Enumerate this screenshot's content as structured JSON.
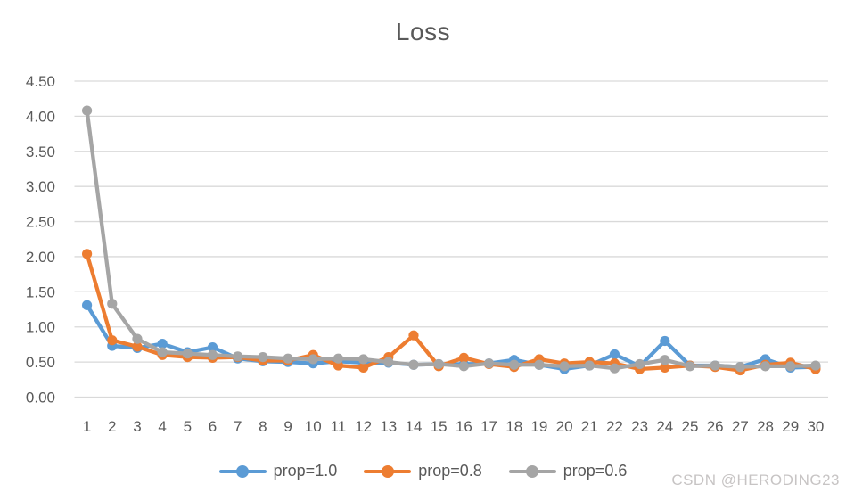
{
  "watermark": "CSDN @HERODING23",
  "colors": {
    "grid": "#D9D9D9",
    "axis_text": "#595959",
    "title_text": "#595959",
    "series_blue": "#5B9BD5",
    "series_orange": "#ED7D31",
    "series_gray": "#A5A5A5"
  },
  "chart_data": {
    "type": "line",
    "title": "Loss",
    "xlabel": "",
    "ylabel": "",
    "x": [
      "1",
      "2",
      "3",
      "4",
      "5",
      "6",
      "7",
      "8",
      "9",
      "10",
      "11",
      "12",
      "13",
      "14",
      "15",
      "16",
      "17",
      "18",
      "19",
      "20",
      "21",
      "22",
      "23",
      "24",
      "25",
      "26",
      "27",
      "28",
      "29",
      "30"
    ],
    "ylim": [
      0,
      4.5
    ],
    "ytick_step": 0.5,
    "ytick_labels": [
      "0.00",
      "0.50",
      "1.00",
      "1.50",
      "2.00",
      "2.50",
      "3.00",
      "3.50",
      "4.00",
      "4.50"
    ],
    "grid": true,
    "legend_position": "bottom",
    "series": [
      {
        "name": "prop=1.0",
        "color": "#5B9BD5",
        "values": [
          1.31,
          0.73,
          0.7,
          0.76,
          0.64,
          0.71,
          0.55,
          0.51,
          0.5,
          0.48,
          0.51,
          0.49,
          0.49,
          0.46,
          0.47,
          0.47,
          0.48,
          0.53,
          0.46,
          0.4,
          0.45,
          0.61,
          0.44,
          0.8,
          0.45,
          0.45,
          0.43,
          0.54,
          0.42,
          0.43
        ]
      },
      {
        "name": "prop=0.8",
        "color": "#ED7D31",
        "values": [
          2.04,
          0.81,
          0.72,
          0.6,
          0.57,
          0.56,
          0.57,
          0.52,
          0.52,
          0.6,
          0.45,
          0.42,
          0.57,
          0.88,
          0.44,
          0.56,
          0.47,
          0.43,
          0.54,
          0.48,
          0.5,
          0.48,
          0.4,
          0.42,
          0.45,
          0.43,
          0.38,
          0.46,
          0.49,
          0.4
        ]
      },
      {
        "name": "prop=0.6",
        "color": "#A5A5A5",
        "values": [
          4.08,
          1.33,
          0.83,
          0.64,
          0.62,
          0.6,
          0.58,
          0.57,
          0.55,
          0.54,
          0.55,
          0.54,
          0.5,
          0.46,
          0.47,
          0.44,
          0.48,
          0.46,
          0.46,
          0.44,
          0.45,
          0.41,
          0.47,
          0.53,
          0.44,
          0.45,
          0.43,
          0.44,
          0.44,
          0.45
        ]
      }
    ]
  }
}
